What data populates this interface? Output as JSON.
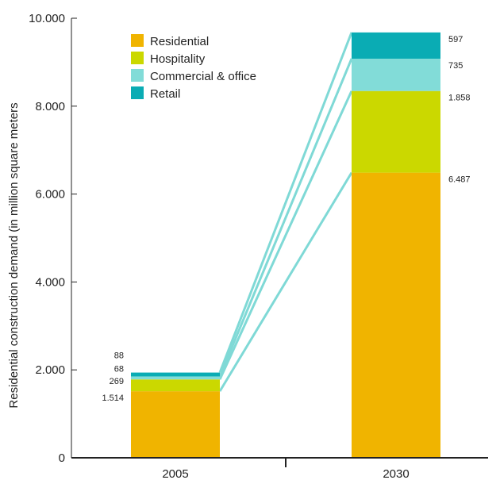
{
  "chart_data": {
    "type": "bar",
    "stacked": true,
    "categories": [
      "2005",
      "2030"
    ],
    "series": [
      {
        "name": "Residential",
        "values": [
          1514,
          6487
        ],
        "labels": [
          "1.514",
          "6.487"
        ],
        "color": "#f0b400"
      },
      {
        "name": "Hospitality",
        "values": [
          269,
          1858
        ],
        "labels": [
          "269",
          "1.858"
        ],
        "color": "#cbd800"
      },
      {
        "name": "Commercial & office",
        "values": [
          68,
          735
        ],
        "labels": [
          "68",
          "735"
        ],
        "color": "#82dcd8"
      },
      {
        "name": "Retail",
        "values": [
          88,
          597
        ],
        "labels": [
          "88",
          "597"
        ],
        "color": "#0aacb4"
      }
    ],
    "ylabel": "Residential construction demand  (in million square meters",
    "ylim": [
      0,
      10000
    ],
    "yticks": [
      0,
      2000,
      4000,
      6000,
      8000,
      10000
    ],
    "ytick_labels": [
      "0",
      "2.000",
      "4.000",
      "6.000",
      "8.000",
      "10.000"
    ],
    "legend_position": "top-left",
    "connector_color": "#7fd9d6",
    "grid": false
  }
}
